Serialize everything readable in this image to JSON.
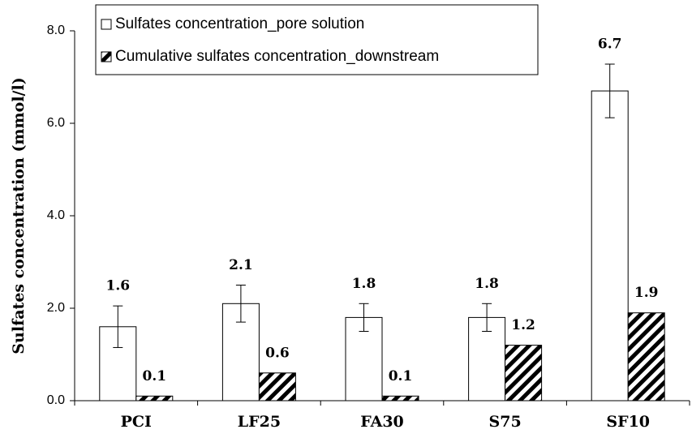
{
  "chart_data": {
    "type": "bar",
    "y_label": "Sulfates concentration (mmol/l)",
    "categories": [
      "PCI",
      "LF25",
      "FA30",
      "S75",
      "SF10"
    ],
    "series": [
      {
        "name": "Sulfates concentration_pore solution",
        "color": "#ffffff",
        "values": [
          1.6,
          2.1,
          1.8,
          1.8,
          6.7
        ],
        "errors": [
          0.45,
          0.4,
          0.3,
          0.3,
          0.58
        ]
      },
      {
        "name": "Cumulative sulfates concentration_downstream",
        "color": "#000000",
        "pattern": "hatch",
        "values": [
          0.1,
          0.6,
          0.1,
          1.2,
          1.9
        ]
      }
    ],
    "ylim": [
      0,
      8
    ],
    "yticks": [
      {
        "value": 0,
        "label": "0.0"
      },
      {
        "value": 2,
        "label": "2.0"
      },
      {
        "value": 4,
        "label": "4.0"
      },
      {
        "value": 6,
        "label": "6.0"
      },
      {
        "value": 8,
        "label": "8.0"
      }
    ],
    "legend": "upper left",
    "grid": false
  }
}
